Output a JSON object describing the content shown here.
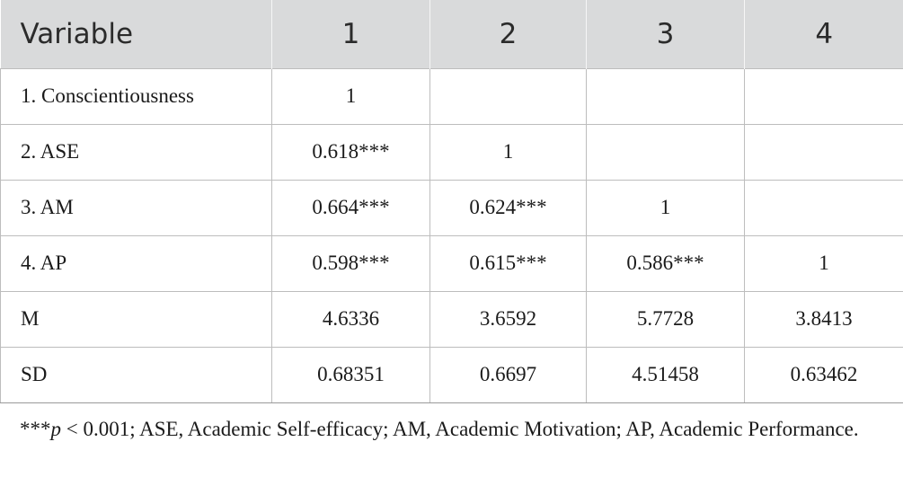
{
  "table": {
    "headers": [
      "Variable",
      "1",
      "2",
      "3",
      "4"
    ],
    "rows": [
      {
        "label": "1. Conscientiousness",
        "cells": [
          "1",
          "",
          "",
          ""
        ]
      },
      {
        "label": "2. ASE",
        "cells": [
          "0.618***",
          "1",
          "",
          ""
        ]
      },
      {
        "label": "3. AM",
        "cells": [
          "0.664***",
          "0.624***",
          "1",
          ""
        ]
      },
      {
        "label": "4. AP",
        "cells": [
          "0.598***",
          "0.615***",
          "0.586***",
          "1"
        ]
      },
      {
        "label": "M",
        "cells": [
          "4.6336",
          "3.6592",
          "5.7728",
          "3.8413"
        ]
      },
      {
        "label": "SD",
        "cells": [
          "0.68351",
          "0.6697",
          "4.51458",
          "0.63462"
        ]
      }
    ]
  },
  "footnote": {
    "stars": "***",
    "p_symbol": "p",
    "rest": " < 0.001; ASE, Academic Self-efficacy; AM, Academic Motivation; AP, Academic Performance."
  }
}
